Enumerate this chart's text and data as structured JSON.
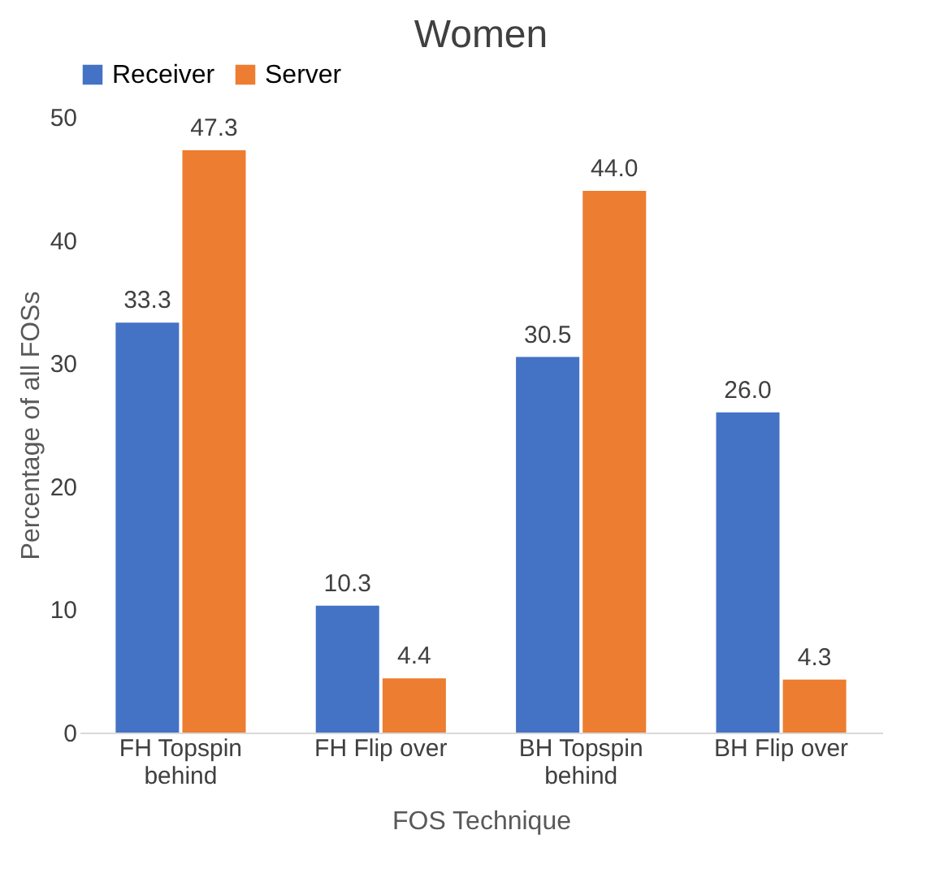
{
  "chart_data": {
    "type": "bar",
    "title": "Women",
    "xlabel": "FOS Technique",
    "ylabel": "Percentage of all FOSs",
    "categories": [
      "FH Topspin\nbehind",
      "FH Flip over",
      "BH Topspin\nbehind",
      "BH Flip over"
    ],
    "series": [
      {
        "name": "Receiver",
        "color": "#4472c4",
        "values": [
          33.3,
          10.3,
          30.5,
          26.0
        ],
        "value_labels": [
          "33.3",
          "10.3",
          "30.5",
          "26.0"
        ]
      },
      {
        "name": "Server",
        "color": "#ed7d31",
        "values": [
          47.3,
          4.4,
          44.0,
          4.3
        ],
        "value_labels": [
          "47.3",
          "4.4",
          "44.0",
          "4.3"
        ]
      }
    ],
    "ylim": [
      0,
      50
    ],
    "yticks": [
      0,
      10,
      20,
      30,
      40,
      50
    ],
    "grid": false,
    "legend": "top"
  }
}
